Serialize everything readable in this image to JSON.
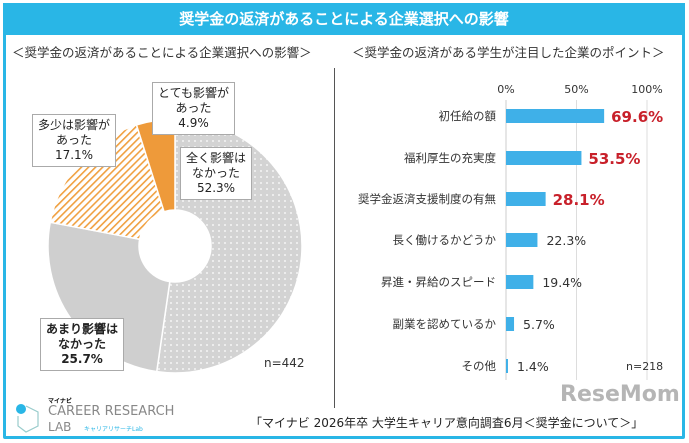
{
  "title": "奨学金の返済があることによる企業選択への影響",
  "footer": "「マイナビ 2026年卒 大学生キャリア意向調査6月＜奨学金について＞」",
  "logo": {
    "small": "マイナビ",
    "main": "CAREER RESEARCH",
    "sub": "LAB",
    "kana": "キャリアリサーチLab"
  },
  "watermark": "ReseMom",
  "chart_data": [
    {
      "type": "pie",
      "donut": true,
      "title": "＜奨学金の返済があることによる企業選択への影響＞",
      "n": "n=442",
      "slices": [
        {
          "label": "全く影響は\nなかった",
          "value": 52.3,
          "display": "52.3%",
          "color": "#d3d3d3",
          "pattern": "dots"
        },
        {
          "label": "あまり影響は\nなかった",
          "value": 25.7,
          "display": "25.7%",
          "color": "#cfcfcf",
          "pattern": "solid"
        },
        {
          "label": "多少は影響が\nあった",
          "value": 17.1,
          "display": "17.1%",
          "color": "#f0a040",
          "pattern": "hatch"
        },
        {
          "label": "とても影響が\nあった",
          "value": 4.9,
          "display": "4.9%",
          "color": "#ee9a3a",
          "pattern": "solid"
        }
      ]
    },
    {
      "type": "bar",
      "orientation": "horizontal",
      "title": "＜奨学金の返済がある学生が注目した企業のポイント＞",
      "n": "n=218",
      "xlim": [
        0,
        100
      ],
      "ticks": [
        "0%",
        "50%",
        "100%"
      ],
      "grid": true,
      "bar_color": "#3fb0e8",
      "highlight_color": "#c8202a",
      "categories": [
        "初任給の額",
        "福利厚生の充実度",
        "奨学金返済支援制度の有無",
        "長く働けるかどうか",
        "昇進・昇給のスピード",
        "副業を認めているか",
        "その他"
      ],
      "values": [
        69.6,
        53.5,
        28.1,
        22.3,
        19.4,
        5.7,
        1.4
      ],
      "labels": [
        "69.6%",
        "53.5%",
        "28.1%",
        "22.3%",
        "19.4%",
        "5.7%",
        "1.4%"
      ],
      "highlighted": [
        true,
        true,
        true,
        false,
        false,
        false,
        false
      ]
    }
  ]
}
